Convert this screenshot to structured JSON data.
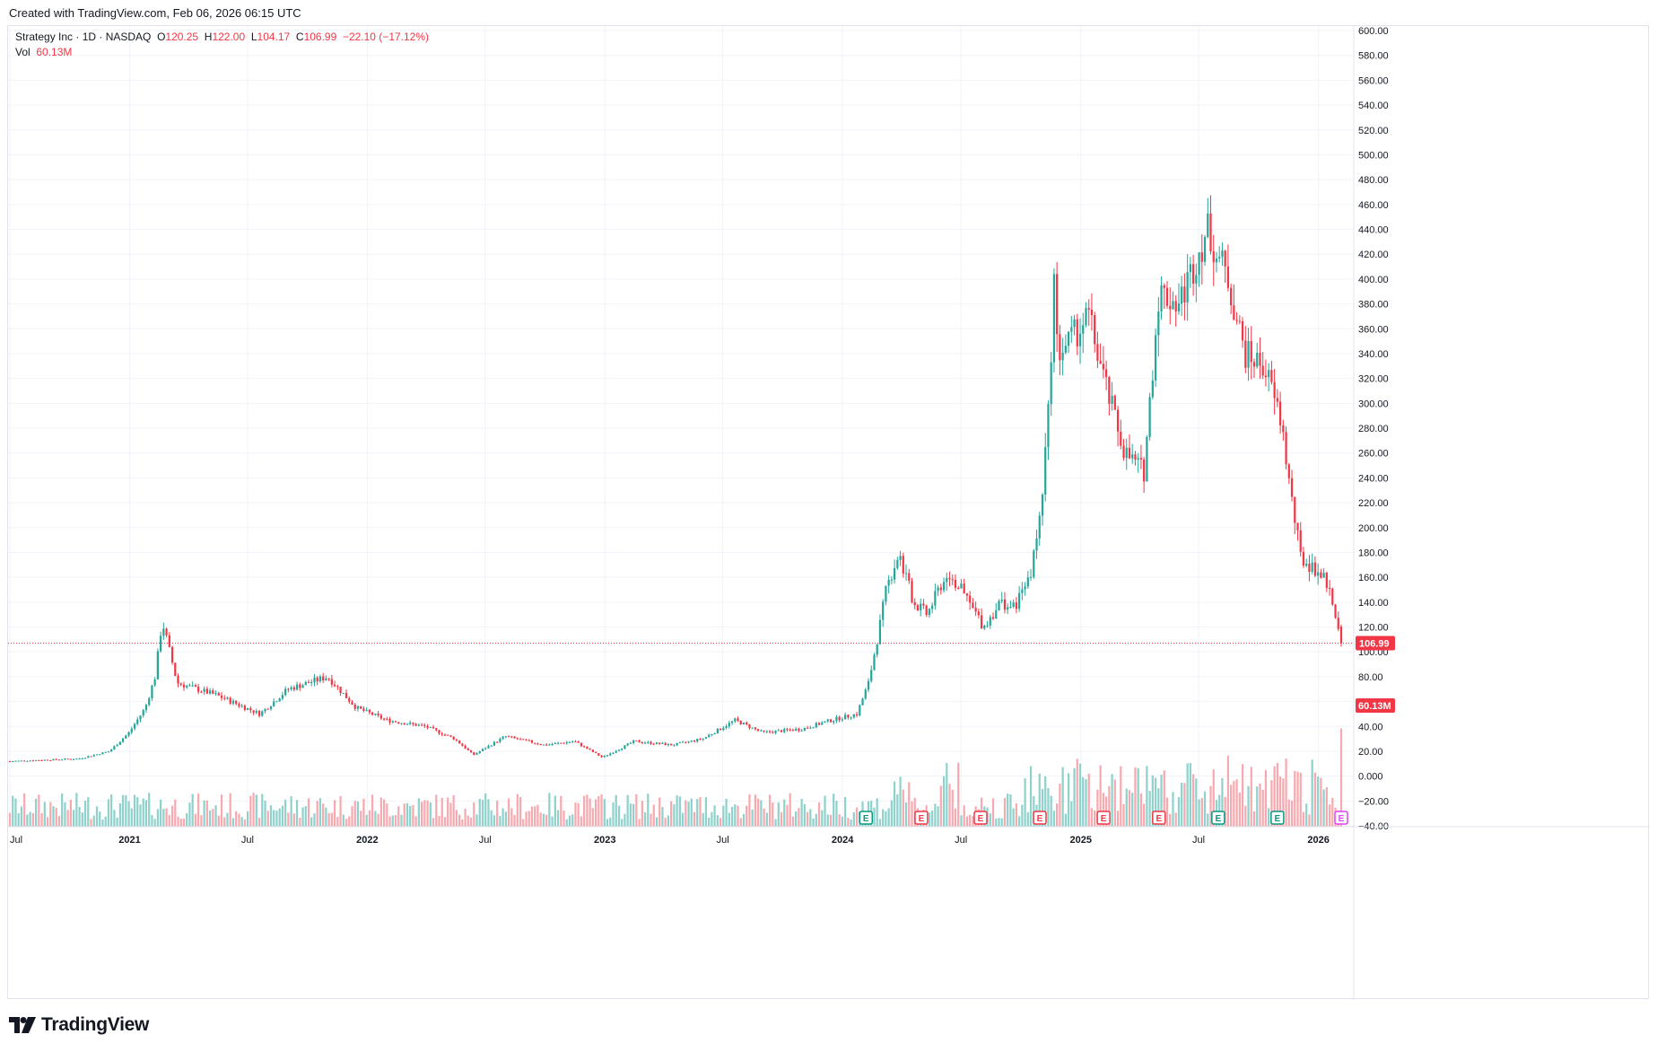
{
  "caption": "Created with TradingView.com, Feb 06, 2026 06:15 UTC",
  "legend": {
    "symbol": "Strategy Inc · 1D · NASDAQ",
    "o_label": "O",
    "o_value": "120.25",
    "h_label": "H",
    "h_value": "122.00",
    "l_label": "L",
    "l_value": "104.17",
    "c_label": "C",
    "c_value": "106.99",
    "change": "−22.10 (−17.12%)",
    "vol_label": "Vol",
    "vol_value": "60.13M"
  },
  "brand": {
    "wordmark": "TradingView",
    "logo_icon": "tradingview-logo-icon"
  },
  "colors": {
    "up": "#26a69a",
    "down": "#f23645",
    "up_vol": "#8fd1cb",
    "down_vol": "#f7a9b0",
    "grid": "#f0f3fa",
    "axis_text": "#131722",
    "price_line": "#f23645",
    "earnings_green": "#089981",
    "earnings_red": "#f23645",
    "earnings_upcoming": "#e040fb"
  },
  "chart_data": {
    "type": "line",
    "series": [
      {
        "name": "Strategy Inc · 1D · NASDAQ",
        "x": [
          "2020-07-01",
          "2020-10-15",
          "2020-12-01",
          "2020-12-31",
          "2021-01-25",
          "2021-02-09",
          "2021-02-20",
          "2021-03-15",
          "2021-05-15",
          "2021-07-20",
          "2021-09-01",
          "2021-11-01",
          "2021-12-15",
          "2022-01-31",
          "2022-03-31",
          "2022-05-15",
          "2022-06-13",
          "2022-08-01",
          "2022-09-30",
          "2022-11-15",
          "2022-12-28",
          "2023-02-15",
          "2023-04-15",
          "2023-05-31",
          "2023-07-20",
          "2023-08-31",
          "2023-10-31",
          "2023-12-15",
          "2024-01-23",
          "2024-02-10",
          "2024-02-25",
          "2024-03-08",
          "2024-03-27",
          "2024-04-19",
          "2024-05-10",
          "2024-06-10",
          "2024-07-01",
          "2024-08-05",
          "2024-08-30",
          "2024-09-20",
          "2024-10-15",
          "2024-10-31",
          "2024-11-12",
          "2024-11-21",
          "2024-11-26",
          "2024-12-15",
          "2025-01-13",
          "2025-02-10",
          "2025-03-10",
          "2025-04-08",
          "2025-05-01",
          "2025-06-01",
          "2025-07-14",
          "2025-08-15",
          "2025-09-10",
          "2025-10-10",
          "2025-11-05",
          "2025-11-20",
          "2025-12-05",
          "2025-12-31",
          "2026-01-15",
          "2026-02-05"
        ],
        "values": [
          12,
          14,
          20,
          35,
          55,
          80,
          125,
          75,
          65,
          50,
          70,
          80,
          55,
          45,
          40,
          30,
          17,
          32,
          25,
          28,
          15,
          28,
          25,
          30,
          45,
          35,
          38,
          45,
          50,
          75,
          115,
          150,
          180,
          140,
          130,
          165,
          150,
          120,
          140,
          135,
          160,
          210,
          290,
          400,
          340,
          350,
          370,
          310,
          260,
          245,
          390,
          380,
          440,
          400,
          340,
          330,
          285,
          225,
          175,
          165,
          155,
          106.99
        ]
      }
    ],
    "volume_series": {
      "name": "Vol",
      "last": "60.13M"
    },
    "y_ticks": [
      "600.00",
      "580.00",
      "560.00",
      "540.00",
      "520.00",
      "500.00",
      "480.00",
      "460.00",
      "440.00",
      "420.00",
      "400.00",
      "380.00",
      "360.00",
      "340.00",
      "320.00",
      "300.00",
      "280.00",
      "260.00",
      "240.00",
      "220.00",
      "200.00",
      "180.00",
      "160.00",
      "140.00",
      "120.00",
      "100.00",
      "80.00",
      "60.00",
      "40.00",
      "20.00",
      "0.000",
      "−20.00",
      "−40.00"
    ],
    "ylim": [
      -40,
      600
    ],
    "x_ticks": [
      "Jul",
      "2021",
      "Jul",
      "2022",
      "Jul",
      "2023",
      "Jul",
      "2024",
      "Jul",
      "2025",
      "Jul",
      "2026"
    ],
    "last_price_label": "106.99",
    "last_volume_label": "60.13M",
    "earnings_markers": [
      {
        "label": "E",
        "kind": "green"
      },
      {
        "label": "E",
        "kind": "red"
      },
      {
        "label": "E",
        "kind": "red"
      },
      {
        "label": "E",
        "kind": "red"
      },
      {
        "label": "E",
        "kind": "red"
      },
      {
        "label": "E",
        "kind": "red"
      },
      {
        "label": "E",
        "kind": "green"
      },
      {
        "label": "E",
        "kind": "green"
      },
      {
        "label": "E",
        "kind": "upcoming"
      }
    ],
    "grid": true,
    "legend_position": "top-left"
  }
}
